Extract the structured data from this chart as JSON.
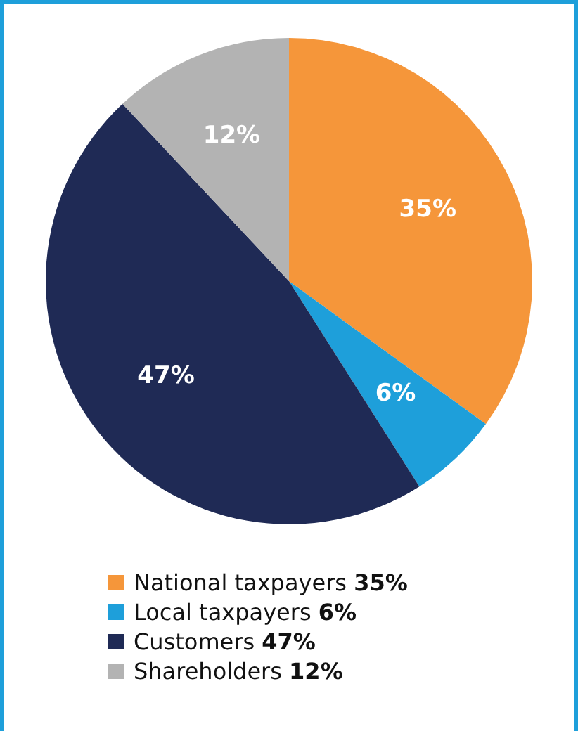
{
  "chart_data": {
    "type": "pie",
    "categories": [
      "National taxpayers",
      "Local taxpayers",
      "Customers",
      "Shareholders"
    ],
    "values": [
      35,
      6,
      47,
      12
    ],
    "colors": [
      "#f5963a",
      "#1e9fda",
      "#1f2a55",
      "#b3b3b3"
    ],
    "value_labels": [
      "35%",
      "6%",
      "47%",
      "12%"
    ],
    "legend": "bottom"
  }
}
